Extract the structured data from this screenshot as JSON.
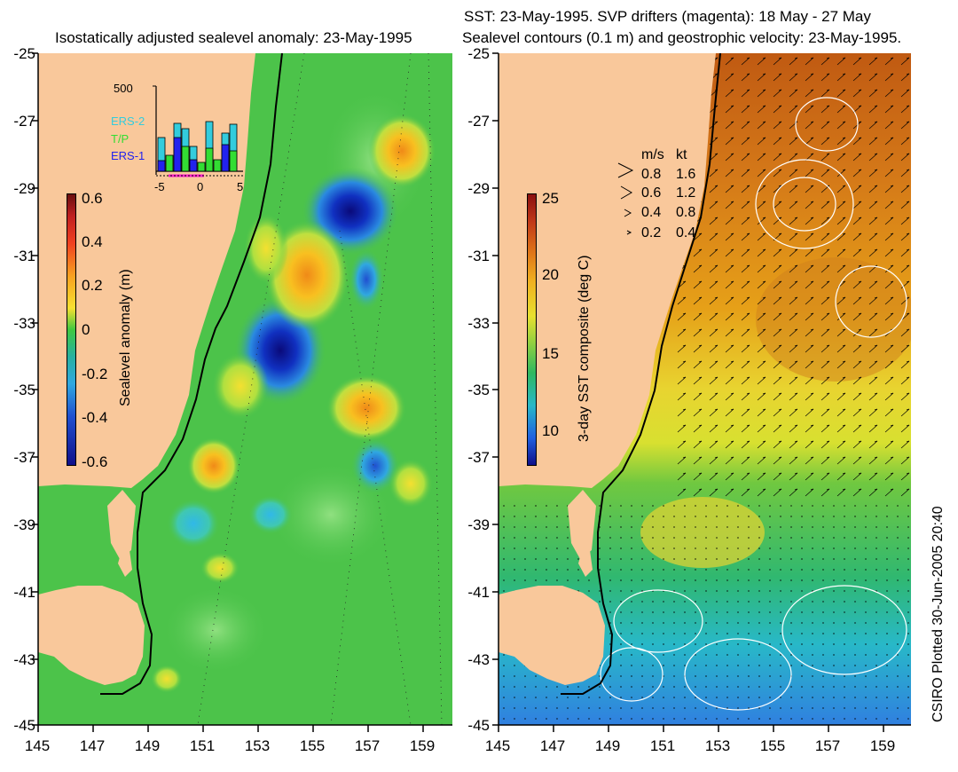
{
  "left_title": "Isostatically adjusted sealevel anomaly: 23-May-1995",
  "right_title_1": "SST: 23-May-1995. SVP drifters (magenta): 18 May - 27 May",
  "right_title_2": "Sealevel contours (0.1 m) and geostrophic velocity: 23-May-1995.",
  "side_label": "CSIRO Plotted 30-Jun-2005 20:40",
  "y_ticks": [
    "-25",
    "-27",
    "-29",
    "-31",
    "-33",
    "-35",
    "-37",
    "-39",
    "-41",
    "-43",
    "-45"
  ],
  "x_ticks": [
    "145",
    "147",
    "149",
    "151",
    "153",
    "155",
    "157",
    "159"
  ],
  "left_colorbar": {
    "label": "Sealevel anomaly (m)",
    "ticks": [
      "0.6",
      "0.4",
      "0.2",
      "0",
      "-0.2",
      "-0.4",
      "-0.6"
    ]
  },
  "right_colorbar": {
    "label": "3-day SST composite (deg C)",
    "ticks": [
      "25",
      "20",
      "15",
      "10"
    ]
  },
  "inset": {
    "ymax": "500",
    "legend": [
      "ERS-2",
      "T/P",
      "ERS-1"
    ],
    "xticks": [
      "-5",
      "0",
      "5"
    ]
  },
  "velocity_legend": {
    "header_ms": "m/s",
    "header_kt": "kt",
    "rows": [
      {
        "ms": "0.8",
        "kt": "1.6"
      },
      {
        "ms": "0.6",
        "kt": "1.2"
      },
      {
        "ms": "0.4",
        "kt": "0.8"
      },
      {
        "ms": "0.2",
        "kt": "0.4"
      }
    ]
  },
  "colors": {
    "land": "#f9c89b",
    "ocean_green": "#4cc34a",
    "ers2": "#33ccdd",
    "tp": "#33dd33",
    "ers1": "#2222ee"
  }
}
